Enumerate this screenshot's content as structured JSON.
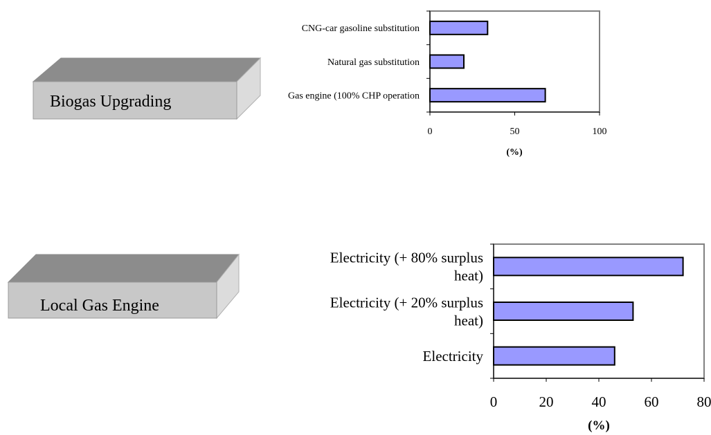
{
  "boxes": {
    "upgrading": {
      "label": "Biogas Upgrading"
    },
    "engine": {
      "label": "Local Gas Engine"
    }
  },
  "colors": {
    "bar_fill": "#9999ff",
    "frame": "#808080"
  },
  "chart_data": [
    {
      "type": "bar",
      "orientation": "horizontal",
      "categories": [
        "CNG-car gasoline substitution",
        "Natural gas substitution",
        "Gas engine (100% CHP operation"
      ],
      "values": [
        34,
        20,
        68
      ],
      "xlabel": "(%)",
      "xlim": [
        0,
        100
      ],
      "xticks": [
        "0",
        "50",
        "100"
      ],
      "grid": false
    },
    {
      "type": "bar",
      "orientation": "horizontal",
      "categories": [
        "Electricity (+ 80% surplus heat)",
        "Electricity (+ 20% surplus heat)",
        "Electricity"
      ],
      "values": [
        72,
        53,
        46
      ],
      "xlabel": "(%)",
      "xlim": [
        0,
        80
      ],
      "xticks": [
        "0",
        "20",
        "40",
        "60",
        "80"
      ],
      "grid": false
    }
  ]
}
